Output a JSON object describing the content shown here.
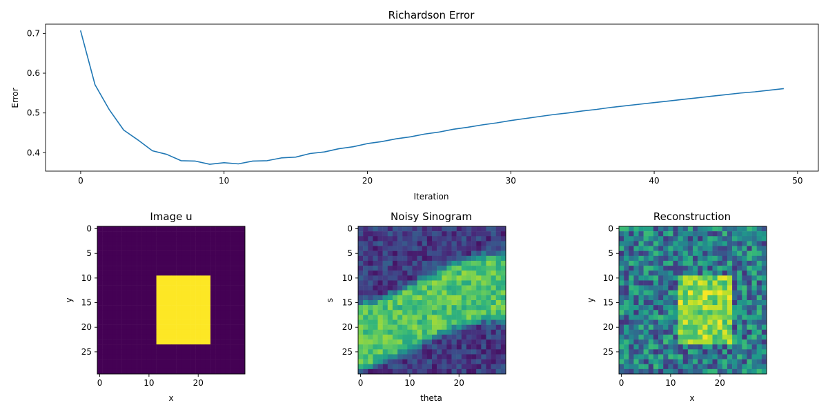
{
  "chart_data": [
    {
      "type": "line",
      "title": "Richardson Error",
      "xlabel": "Iteration",
      "ylabel": "Error",
      "xlim": [
        -2.45,
        51.45
      ],
      "ylim": [
        0.3538,
        0.7232
      ],
      "xticks": [
        0,
        10,
        20,
        30,
        40,
        50
      ],
      "yticks": [
        0.4,
        0.5,
        0.6,
        0.7
      ],
      "grid": false,
      "color": "#1f77b4",
      "series": [
        {
          "x": [
            0,
            1,
            2,
            3,
            4,
            5,
            6,
            7,
            8,
            9,
            10,
            11,
            12,
            13,
            14,
            15,
            16,
            17,
            18,
            19,
            20,
            21,
            22,
            23,
            24,
            25,
            26,
            27,
            28,
            29,
            30,
            31,
            32,
            33,
            34,
            35,
            36,
            37,
            38,
            39,
            40,
            41,
            42,
            43,
            44,
            45,
            46,
            47,
            48,
            49
          ],
          "y": [
            0.706,
            0.571,
            0.508,
            0.457,
            0.432,
            0.405,
            0.396,
            0.38,
            0.379,
            0.371,
            0.375,
            0.372,
            0.379,
            0.38,
            0.387,
            0.389,
            0.398,
            0.402,
            0.41,
            0.415,
            0.423,
            0.428,
            0.435,
            0.44,
            0.447,
            0.452,
            0.459,
            0.464,
            0.47,
            0.475,
            0.481,
            0.486,
            0.491,
            0.496,
            0.5,
            0.505,
            0.509,
            0.514,
            0.518,
            0.522,
            0.526,
            0.53,
            0.534,
            0.538,
            0.542,
            0.546,
            0.55,
            0.553,
            0.557,
            0.561
          ]
        }
      ]
    },
    {
      "type": "heatmap",
      "title": "Image u",
      "xlabel": "x",
      "ylabel": "y",
      "xticks": [
        0,
        10,
        20
      ],
      "yticks": [
        0,
        5,
        10,
        15,
        20,
        25
      ],
      "colormap": "viridis",
      "shape": [
        30,
        30
      ],
      "rect": {
        "rows": [
          10,
          23
        ],
        "cols": [
          12,
          22
        ],
        "inside": 1,
        "outside": 0
      }
    },
    {
      "type": "heatmap",
      "title": "Noisy Sinogram",
      "xlabel": "theta",
      "ylabel": "s",
      "xticks": [
        0,
        10,
        20
      ],
      "yticks": [
        0,
        5,
        10,
        15,
        20,
        25
      ],
      "colormap": "viridis",
      "shape": [
        30,
        30
      ]
    },
    {
      "type": "heatmap",
      "title": "Reconstruction",
      "xlabel": "x",
      "ylabel": "y",
      "xticks": [
        0,
        10,
        20
      ],
      "yticks": [
        0,
        5,
        10,
        15,
        20,
        25
      ],
      "colormap": "viridis",
      "shape": [
        30,
        30
      ]
    }
  ]
}
